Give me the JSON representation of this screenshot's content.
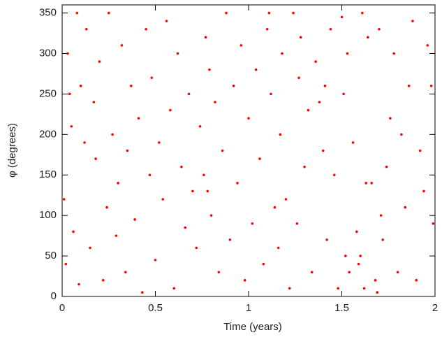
{
  "chart_data": {
    "type": "scatter",
    "xlabel": "Time (years)",
    "ylabel": "φ (degrees)",
    "xlim": [
      0,
      2
    ],
    "ylim": [
      0,
      360
    ],
    "xticks": [
      0,
      0.5,
      1,
      1.5,
      2
    ],
    "yticks": [
      0,
      50,
      100,
      150,
      200,
      250,
      300,
      350
    ],
    "series": [
      {
        "color": "#ff0000",
        "x": [
          0.01,
          0.02,
          0.03,
          0.05,
          0.06,
          0.08,
          0.09,
          0.1,
          0.12,
          0.13,
          0.15,
          0.17,
          0.18,
          0.2,
          0.22,
          0.24,
          0.25,
          0.27,
          0.29,
          0.3,
          0.32,
          0.34,
          0.35,
          0.37,
          0.39,
          0.41,
          0.43,
          0.45,
          0.47,
          0.48,
          0.5,
          0.52,
          0.54,
          0.56,
          0.58,
          0.6,
          0.62,
          0.64,
          0.66,
          0.68,
          0.7,
          0.72,
          0.74,
          0.76,
          0.77,
          0.78,
          0.79,
          0.8,
          0.82,
          0.84,
          0.86,
          0.88,
          0.9,
          0.92,
          0.94,
          0.96,
          0.98,
          1.0,
          1.02,
          1.04,
          1.06,
          1.08,
          1.1,
          1.12,
          1.14,
          1.16,
          1.17,
          1.18,
          1.2,
          1.22,
          1.24,
          1.26,
          1.27,
          1.28,
          1.3,
          1.32,
          1.34,
          1.36,
          1.38,
          1.4,
          1.41,
          1.42,
          1.44,
          1.46,
          1.48,
          1.5,
          1.51,
          1.52,
          1.53,
          1.54,
          1.56,
          1.58,
          1.59,
          1.6,
          1.61,
          1.62,
          1.64,
          1.66,
          1.68,
          1.69,
          1.7,
          1.71,
          1.72,
          1.74,
          1.76,
          1.78,
          1.8,
          1.82,
          1.84,
          1.86,
          1.88,
          1.9,
          1.92,
          1.94,
          1.96,
          1.98,
          1.99,
          0.04,
          1.11,
          1.63
        ],
        "y": [
          120,
          40,
          300,
          210,
          80,
          350,
          15,
          260,
          190,
          330,
          60,
          240,
          170,
          290,
          20,
          110,
          350,
          200,
          75,
          140,
          310,
          30,
          180,
          260,
          95,
          220,
          5,
          330,
          150,
          270,
          45,
          190,
          120,
          340,
          230,
          10,
          300,
          160,
          85,
          250,
          130,
          60,
          210,
          150,
          320,
          130,
          280,
          100,
          240,
          30,
          180,
          350,
          70,
          260,
          140,
          310,
          20,
          220,
          90,
          280,
          170,
          40,
          330,
          250,
          110,
          60,
          200,
          300,
          120,
          10,
          350,
          90,
          270,
          320,
          160,
          230,
          30,
          290,
          240,
          180,
          260,
          70,
          330,
          150,
          10,
          345,
          250,
          50,
          300,
          30,
          190,
          80,
          40,
          50,
          350,
          10,
          320,
          140,
          20,
          5,
          330,
          100,
          70,
          160,
          220,
          300,
          30,
          200,
          110,
          260,
          340,
          20,
          180,
          130,
          310,
          260,
          90,
          250,
          350,
          140
        ]
      }
    ]
  }
}
